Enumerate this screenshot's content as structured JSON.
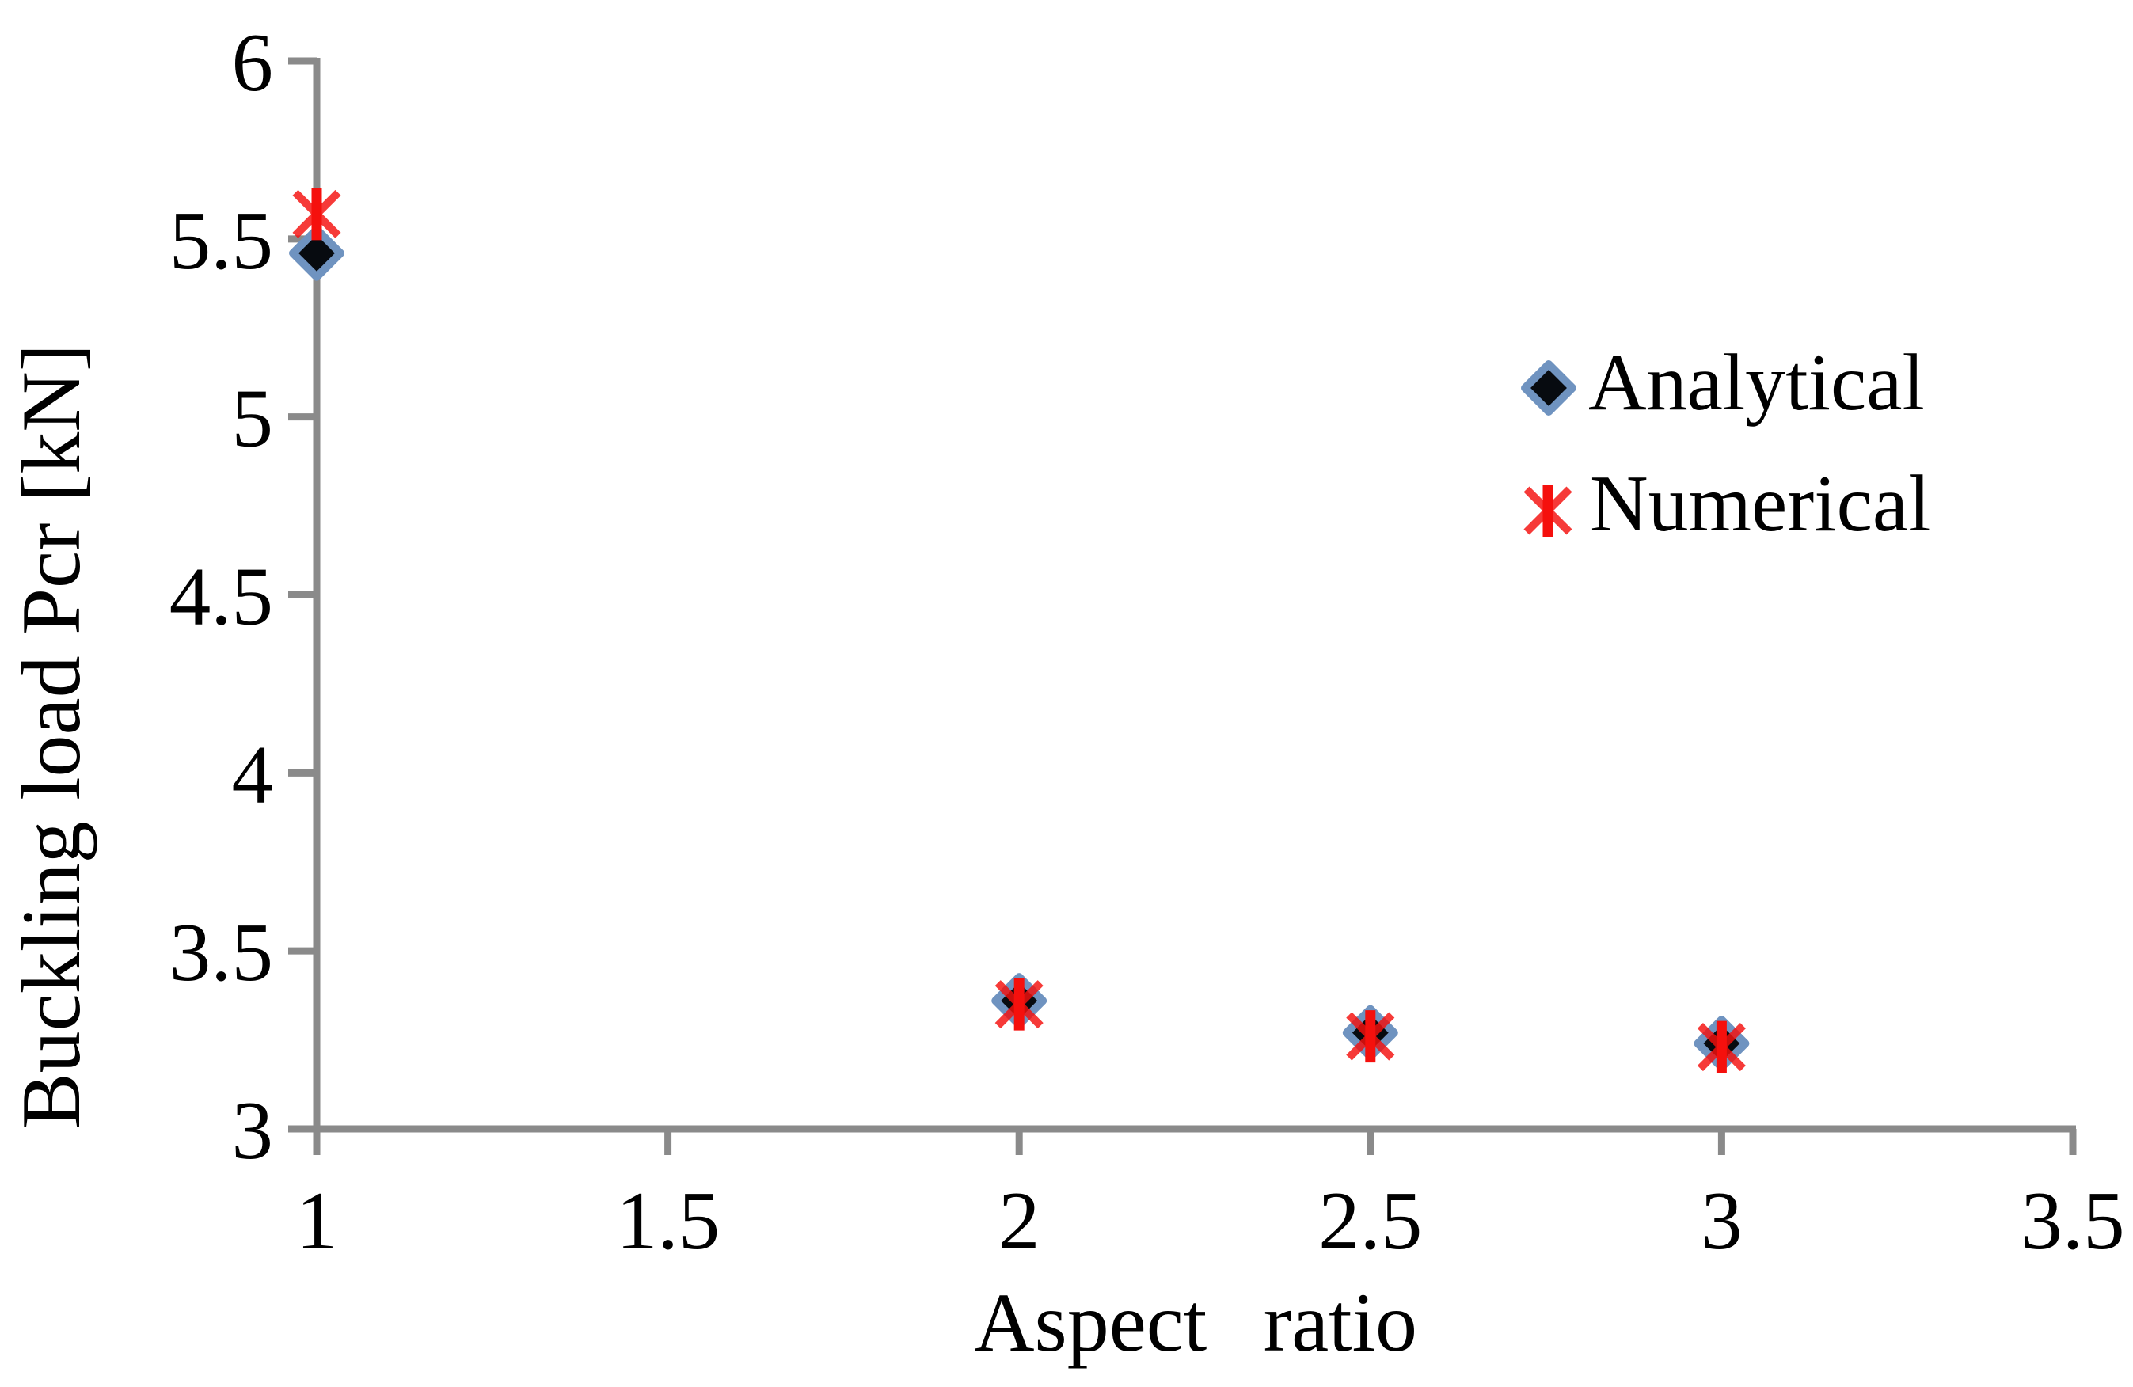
{
  "chart_data": {
    "type": "scatter",
    "title": "",
    "xlabel": "Aspect ratio",
    "ylabel": "Buckling load Pcr [kN]",
    "xlim": [
      1,
      3.5
    ],
    "ylim": [
      3,
      6
    ],
    "xticks": [
      1,
      1.5,
      2,
      2.5,
      3,
      3.5
    ],
    "yticks": [
      6,
      5.5,
      5,
      4.5,
      4,
      3.5,
      3
    ],
    "grid": false,
    "legend_position": "upper-right-inside, no border",
    "series": [
      {
        "name": "Analytical",
        "marker": "diamond",
        "color": "#070b10",
        "edge_color": "#6f93c0",
        "x": [
          1,
          2,
          2.5,
          3
        ],
        "y": [
          5.46,
          3.36,
          3.27,
          3.24
        ]
      },
      {
        "name": "Numerical",
        "marker": "asterisk",
        "color": "#f5100d",
        "x": [
          1,
          2,
          2.5,
          3
        ],
        "y": [
          5.57,
          3.35,
          3.26,
          3.23
        ]
      }
    ]
  },
  "colors": {
    "axis": "#8a8a8a",
    "text": "#000000",
    "background": "#ffffff"
  }
}
